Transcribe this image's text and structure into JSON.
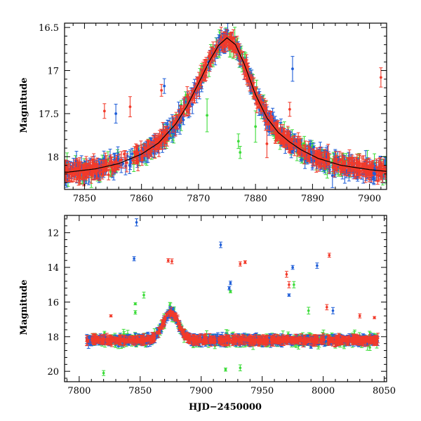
{
  "colors": {
    "series_red": "#f23a2a",
    "series_blue": "#1f5ed8",
    "series_green": "#3ddc3a",
    "model_line": "#000000",
    "frame": "#000000"
  },
  "chart_data": [
    {
      "id": "zoom",
      "type": "scatter",
      "title": "",
      "xlabel": "",
      "ylabel": "Magnitude",
      "xlim": [
        7846.5,
        7903
      ],
      "ylim": [
        18.38,
        16.45
      ],
      "y_inverted": true,
      "grid": false,
      "legend": "none",
      "x_ticks": [
        7850,
        7860,
        7870,
        7880,
        7890,
        7900
      ],
      "x_tick_labels": [
        "7850",
        "7860",
        "7870",
        "7880",
        "7890",
        "7900"
      ],
      "y_ticks": [
        16.5,
        17,
        17.5,
        18
      ],
      "y_tick_labels": [
        "16.5",
        "17",
        "17.5",
        "18"
      ],
      "model_curve": {
        "x": [
          7847,
          7852,
          7856,
          7860,
          7863,
          7866,
          7868,
          7870,
          7872,
          7873.5,
          7875,
          7876.5,
          7878,
          7880,
          7882,
          7884,
          7886,
          7888,
          7891,
          7895,
          7900,
          7903
        ],
        "y": [
          18.18,
          18.14,
          18.08,
          17.97,
          17.84,
          17.62,
          17.41,
          17.15,
          16.88,
          16.71,
          16.62,
          16.7,
          16.92,
          17.28,
          17.55,
          17.72,
          17.83,
          17.92,
          18.02,
          18.1,
          18.15,
          18.17
        ]
      },
      "outliers": [
        {
          "series": "red",
          "x": [
            7853.5,
            7858,
            7863.5,
            7882,
            7886,
            7902
          ],
          "y": [
            17.47,
            17.42,
            17.23,
            17.85,
            17.45,
            17.08
          ]
        },
        {
          "series": "blue",
          "x": [
            7855.5,
            7864,
            7886.5,
            7893.5
          ],
          "y": [
            17.5,
            17.18,
            16.98,
            18.22
          ]
        },
        {
          "series": "green",
          "x": [
            7871.5,
            7877,
            7877.3,
            7880
          ],
          "y": [
            17.52,
            17.82,
            17.95,
            17.65
          ]
        }
      ]
    },
    {
      "id": "full",
      "type": "scatter",
      "title": "",
      "xlabel": "HJD−2450000",
      "ylabel": "Magnitude",
      "xlim": [
        7788,
        8052
      ],
      "ylim": [
        20.6,
        11.0
      ],
      "y_inverted": true,
      "grid": false,
      "legend": "none",
      "x_ticks": [
        7800,
        7850,
        7900,
        7950,
        8000,
        8050
      ],
      "x_tick_labels": [
        "7800",
        "7850",
        "7900",
        "7950",
        "8000",
        "8050"
      ],
      "y_ticks": [
        12,
        14,
        16,
        18,
        20
      ],
      "y_tick_labels": [
        "12",
        "14",
        "16",
        "18",
        "20"
      ],
      "baseline_mag": 18.2,
      "peak": {
        "x": 7875,
        "mag": 16.62
      },
      "outliers": [
        {
          "series": "red",
          "x": [
            7826,
            7873,
            7876,
            7932,
            7936,
            7970,
            7972,
            8003,
            8005,
            8030,
            8042
          ],
          "y": [
            16.8,
            13.6,
            13.65,
            13.8,
            13.7,
            14.4,
            15.0,
            16.3,
            13.3,
            16.8,
            16.9
          ]
        },
        {
          "series": "blue",
          "x": [
            7845,
            7847,
            7916,
            7923,
            7924,
            7975,
            7995,
            7972,
            7990,
            8008
          ],
          "y": [
            13.5,
            11.4,
            12.7,
            15.2,
            14.9,
            14.0,
            13.9,
            15.6,
            18.6,
            16.5
          ]
        },
        {
          "series": "green",
          "x": [
            7846,
            7853,
            7846,
            7924,
            7976,
            7920,
            7932,
            7940,
            7988,
            7820
          ],
          "y": [
            16.1,
            15.6,
            16.6,
            15.4,
            15.0,
            19.9,
            19.8,
            18.4,
            16.5,
            20.1
          ]
        }
      ]
    }
  ]
}
